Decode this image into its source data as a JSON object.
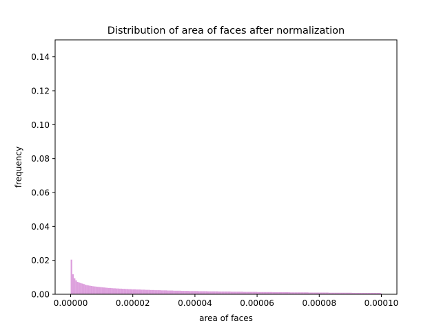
{
  "chart_data": {
    "type": "bar",
    "title": "Distribution of area of faces after normalization",
    "xlabel": "area of faces",
    "ylabel": "frequency",
    "xlim": [
      -5e-06,
      0.000105
    ],
    "ylim": [
      0,
      0.15
    ],
    "bin_range": [
      0,
      0.0001
    ],
    "x_ticks": [
      {
        "value": 0,
        "label": "0.00000"
      },
      {
        "value": 2e-05,
        "label": "0.00002"
      },
      {
        "value": 4e-05,
        "label": "0.00004"
      },
      {
        "value": 6e-05,
        "label": "0.00006"
      },
      {
        "value": 8e-05,
        "label": "0.00008"
      },
      {
        "value": 0.0001,
        "label": "0.00010"
      }
    ],
    "y_ticks": [
      {
        "value": 0,
        "label": "0.00"
      },
      {
        "value": 0.02,
        "label": "0.02"
      },
      {
        "value": 0.04,
        "label": "0.04"
      },
      {
        "value": 0.06,
        "label": "0.06"
      },
      {
        "value": 0.08,
        "label": "0.08"
      },
      {
        "value": 0.1,
        "label": "0.10"
      },
      {
        "value": 0.12,
        "label": "0.12"
      },
      {
        "value": 0.14,
        "label": "0.14"
      }
    ],
    "grid": false,
    "legend": "none",
    "bar_color": "#dda0dd",
    "values": [
      0.0204,
      0.0118,
      0.0094,
      0.0082,
      0.0073,
      0.0069,
      0.0066,
      0.0063,
      0.006,
      0.0056,
      0.0054,
      0.0052,
      0.005,
      0.0049,
      0.0047,
      0.0046,
      0.0045,
      0.0044,
      0.0043,
      0.0042,
      0.0041,
      0.004,
      0.0039,
      0.0038,
      0.0037,
      0.0037,
      0.0036,
      0.0035,
      0.0035,
      0.0034,
      0.0034,
      0.0033,
      0.0033,
      0.0032,
      0.0032,
      0.0031,
      0.0031,
      0.003,
      0.003,
      0.0029,
      0.0029,
      0.0029,
      0.0028,
      0.0028,
      0.0028,
      0.0027,
      0.0027,
      0.0027,
      0.0026,
      0.0026,
      0.0026,
      0.0025,
      0.0025,
      0.0025,
      0.0024,
      0.0024,
      0.0024,
      0.0024,
      0.0023,
      0.0023,
      0.0023,
      0.0023,
      0.0022,
      0.0022,
      0.0022,
      0.0022,
      0.0021,
      0.0021,
      0.0021,
      0.0021,
      0.0021,
      0.002,
      0.002,
      0.002,
      0.002,
      0.002,
      0.0019,
      0.0019,
      0.0019,
      0.0019,
      0.0019,
      0.0019,
      0.0018,
      0.0018,
      0.0018,
      0.0018,
      0.0018,
      0.0018,
      0.0017,
      0.0017,
      0.0017,
      0.0017,
      0.0017,
      0.0017,
      0.0017,
      0.0016,
      0.0016,
      0.0016,
      0.0016,
      0.0016,
      0.0016,
      0.0016,
      0.0016,
      0.0015,
      0.0015,
      0.0015,
      0.0015,
      0.0015,
      0.0015,
      0.0015,
      0.0015,
      0.0014,
      0.0014,
      0.0014,
      0.0014,
      0.0014,
      0.0014,
      0.0014,
      0.0014,
      0.0014,
      0.0013,
      0.0013,
      0.0013,
      0.0013,
      0.0013,
      0.0013,
      0.0013,
      0.0013,
      0.0013,
      0.0013,
      0.0012,
      0.0012,
      0.0012,
      0.0012,
      0.0012,
      0.0012,
      0.0012,
      0.0012,
      0.0012,
      0.0012,
      0.0012,
      0.0011,
      0.0011,
      0.0011,
      0.0011,
      0.0011,
      0.0011,
      0.0011,
      0.0011,
      0.0011,
      0.0011,
      0.0011,
      0.0011,
      0.001,
      0.001,
      0.001,
      0.001,
      0.001,
      0.001,
      0.001,
      0.001,
      0.001,
      0.001,
      0.001,
      0.001,
      0.001,
      0.0009,
      0.0009,
      0.0009,
      0.0009,
      0.0009,
      0.0009,
      0.0009,
      0.0009,
      0.0009,
      0.0009,
      0.0009,
      0.0009,
      0.0009,
      0.0009,
      0.0009,
      0.0008,
      0.0008,
      0.0008,
      0.0008,
      0.0008,
      0.0008,
      0.0008,
      0.0008,
      0.0008,
      0.0008,
      0.0008,
      0.0008,
      0.0008,
      0.0008,
      0.0008,
      0.0008,
      0.0008,
      0.0008,
      0.0007
    ]
  }
}
